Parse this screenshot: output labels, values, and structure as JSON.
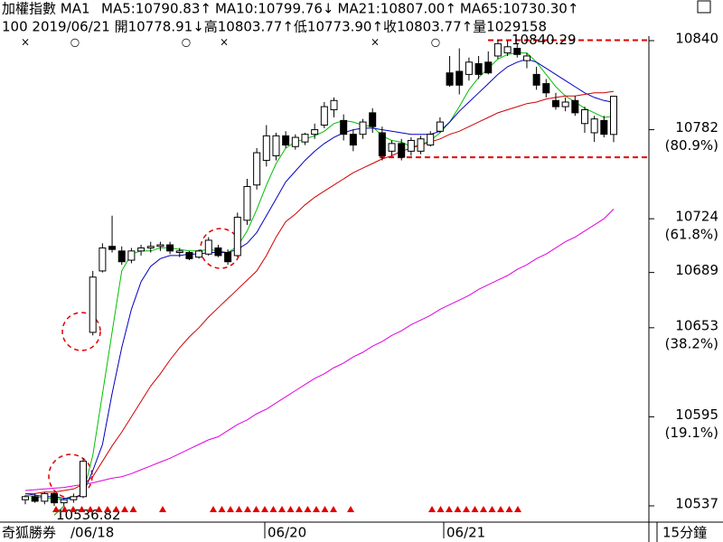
{
  "chart_data": {
    "type": "candlestick",
    "header": {
      "title": "加權指數 MA1",
      "ohlc_line": "100 2019/06/21 開10778.91↓高10803.77↑低10773.90↑收10803.77↑量1029158"
    },
    "ylim": [
      10526.4,
      10854.7
    ],
    "yticks": [
      10840,
      10782,
      10724,
      10689,
      10653,
      10595,
      10537
    ],
    "fib_levels": [
      {
        "value": 10782,
        "label": "(80.9%)"
      },
      {
        "value": 10724,
        "label": "(61.8%)"
      },
      {
        "value": 10653,
        "label": "(38.2%)"
      },
      {
        "value": 10595,
        "label": "(19.1%)"
      }
    ],
    "x_labels": [
      "奇狐勝券",
      "/06/18",
      "06/20",
      "06/21",
      "15分鐘"
    ],
    "high_mark": {
      "value": 10840.29,
      "label": "10840.29"
    },
    "low_mark": {
      "value": 10536.82,
      "label": "10536.82"
    },
    "support_line": 10764,
    "candles": [
      [
        10541,
        10544,
        10538,
        10543
      ],
      [
        10543,
        10545,
        10539,
        10540
      ],
      [
        10540,
        10546,
        10538,
        10545
      ],
      [
        10545,
        10546,
        10537,
        10539
      ],
      [
        10539,
        10542,
        10536.82,
        10541
      ],
      [
        10541,
        10545,
        10539,
        10543
      ],
      [
        10543,
        10568,
        10542,
        10566
      ],
      [
        10650,
        10690,
        10648,
        10686
      ],
      [
        10690,
        10708,
        10689,
        10705
      ],
      [
        10706,
        10726,
        10702,
        10704
      ],
      [
        10703,
        10706,
        10694,
        10696
      ],
      [
        10697,
        10705,
        10695,
        10703
      ],
      [
        10703,
        10707,
        10700,
        10705
      ],
      [
        10705,
        10709,
        10702,
        10706
      ],
      [
        10706,
        10709,
        10703,
        10707
      ],
      [
        10707,
        10709,
        10701,
        10703
      ],
      [
        10702,
        10705,
        10699,
        10703
      ],
      [
        10702,
        10703,
        10697,
        10698
      ],
      [
        10699,
        10704,
        10698,
        10703
      ],
      [
        10701,
        10712,
        10700,
        10710
      ],
      [
        10705,
        10707,
        10699,
        10700
      ],
      [
        10702,
        10704,
        10694,
        10696
      ],
      [
        10700,
        10728,
        10699,
        10725
      ],
      [
        10723,
        10750,
        10720,
        10745
      ],
      [
        10746,
        10770,
        10743,
        10767
      ],
      [
        10762,
        10785,
        10758,
        10778
      ],
      [
        10765,
        10780,
        10762,
        10778
      ],
      [
        10778,
        10781,
        10770,
        10772
      ],
      [
        10771,
        10779,
        10769,
        10777
      ],
      [
        10774,
        10780,
        10772,
        10779
      ],
      [
        10779,
        10786,
        10776,
        10782
      ],
      [
        10785,
        10800,
        10783,
        10797
      ],
      [
        10795,
        10803,
        10790,
        10801
      ],
      [
        10788,
        10792,
        10775,
        10779
      ],
      [
        10779,
        10782,
        10768,
        10772
      ],
      [
        10779,
        10789,
        10776,
        10787
      ],
      [
        10793,
        10796,
        10780,
        10784
      ],
      [
        10780,
        10784,
        10762,
        10765
      ],
      [
        10768,
        10775,
        10765,
        10773
      ],
      [
        10773,
        10776,
        10762,
        10764
      ],
      [
        10768,
        10777,
        10765,
        10775
      ],
      [
        10768,
        10778,
        10766,
        10776
      ],
      [
        10772,
        10781,
        10771,
        10779
      ],
      [
        10781,
        10790,
        10780,
        10787
      ],
      [
        10819,
        10830,
        10810,
        10811
      ],
      [
        10820,
        10835,
        10805,
        10811
      ],
      [
        10818,
        10829,
        10814,
        10826
      ],
      [
        10825,
        10830,
        10815,
        10818
      ],
      [
        10826,
        10833,
        10818,
        10819
      ],
      [
        10830,
        10840.29,
        10828,
        10838
      ],
      [
        10832,
        10840,
        10830,
        10836
      ],
      [
        10835,
        10838,
        10829,
        10831
      ],
      [
        10827,
        10832,
        10822,
        10830
      ],
      [
        10818,
        10823,
        10808,
        10811
      ],
      [
        10812,
        10815,
        10803,
        10806
      ],
      [
        10801,
        10806,
        10795,
        10797
      ],
      [
        10797,
        10803,
        10794,
        10800
      ],
      [
        10801,
        10804,
        10791,
        10793
      ],
      [
        10786,
        10797,
        10780,
        10795
      ],
      [
        10780,
        10791,
        10774,
        10789
      ],
      [
        10788,
        10791,
        10777,
        10779
      ],
      [
        10778.91,
        10803.77,
        10773.9,
        10803.77
      ]
    ],
    "series": [
      {
        "name": "MA5:10790.83↑",
        "color": "#00c000",
        "values": [
          10544,
          10543,
          10542,
          10542,
          10541,
          10542,
          10545,
          10570,
          10610,
          10650,
          10690,
          10701,
          10703,
          10703,
          10705,
          10705,
          10704,
          10703,
          10703,
          10704,
          10703,
          10702,
          10706,
          10716,
          10730,
          10746,
          10760,
          10770,
          10774,
          10776,
          10778,
          10781,
          10786,
          10788,
          10787,
          10785,
          10784,
          10778,
          10775,
          10774,
          10771,
          10772,
          10775,
          10780,
          10787,
          10797,
          10808,
          10816,
          10822,
          10828,
          10831,
          10832,
          10832,
          10826,
          10818,
          10810,
          10804,
          10800,
          10796,
          10793,
          10790,
          10790.83
        ]
      },
      {
        "name": "MA10:10799.76↓",
        "color": "#0000c0",
        "values": [
          10545,
          10544,
          10543,
          10543,
          10542,
          10542,
          10545,
          10560,
          10577,
          10610,
          10640,
          10665,
          10683,
          10693,
          10698,
          10700,
          10700,
          10701,
          10701,
          10702,
          10702,
          10702,
          10704,
          10708,
          10715,
          10726,
          10737,
          10748,
          10755,
          10762,
          10768,
          10773,
          10777,
          10780,
          10782,
          10783,
          10783,
          10782,
          10781,
          10780,
          10779,
          10779,
          10779,
          10781,
          10787,
          10794,
          10800,
          10806,
          10812,
          10818,
          10823,
          10826,
          10828,
          10826,
          10822,
          10818,
          10814,
          10810,
          10806,
          10803,
          10801,
          10799.76
        ]
      },
      {
        "name": "MA21:10807.00↑",
        "color": "#d00000",
        "values": [
          10545,
          10545,
          10546,
          10546,
          10547,
          10548,
          10551,
          10556,
          10566,
          10576,
          10585,
          10595,
          10605,
          10615,
          10623,
          10632,
          10640,
          10647,
          10653,
          10660,
          10666,
          10672,
          10678,
          10684,
          10690,
          10700,
          10712,
          10722,
          10727,
          10733,
          10738,
          10742,
          10746,
          10750,
          10754,
          10757,
          10760,
          10763,
          10765,
          10768,
          10770,
          10772,
          10774,
          10776,
          10779,
          10781,
          10784,
          10787,
          10790,
          10793,
          10795,
          10797,
          10799,
          10800,
          10802,
          10803,
          10804,
          10804,
          10805,
          10806,
          10806,
          10807
        ]
      },
      {
        "name": "MA65:10730.30↑",
        "color": "#e000e0",
        "values": [
          10547,
          10547.5,
          10548,
          10548.5,
          10549,
          10550,
          10551,
          10552,
          10553.5,
          10555,
          10556,
          10558,
          10560.5,
          10563,
          10565.5,
          10568,
          10571,
          10574,
          10577,
          10580,
          10582,
          10586,
          10590,
          10593,
          10597,
          10600,
          10604,
          10608,
          10612,
          10616,
          10620,
          10623,
          10627,
          10630,
          10634,
          10637,
          10641,
          10644,
          10648,
          10651,
          10655,
          10658,
          10661,
          10665,
          10668,
          10671,
          10674,
          10678,
          10681,
          10684,
          10687,
          10691,
          10694,
          10698,
          10701,
          10705,
          10709,
          10712,
          10716,
          10720,
          10724,
          10730.3
        ]
      }
    ]
  }
}
